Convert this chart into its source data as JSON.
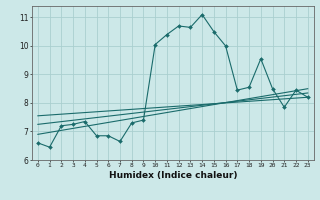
{
  "xlabel": "Humidex (Indice chaleur)",
  "ylabel": "",
  "bg_color": "#cce8e8",
  "grid_color": "#aacfcf",
  "line_color": "#1a6b6b",
  "xlim": [
    -0.5,
    23.5
  ],
  "ylim": [
    6.0,
    11.4
  ],
  "yticks": [
    6,
    7,
    8,
    9,
    10,
    11
  ],
  "xticks": [
    0,
    1,
    2,
    3,
    4,
    5,
    6,
    7,
    8,
    9,
    10,
    11,
    12,
    13,
    14,
    15,
    16,
    17,
    18,
    19,
    20,
    21,
    22,
    23
  ],
  "series1_x": [
    0,
    1,
    2,
    3,
    4,
    5,
    6,
    7,
    8,
    9,
    10,
    11,
    12,
    13,
    14,
    15,
    16,
    17,
    18,
    19,
    20,
    21,
    22,
    23
  ],
  "series1_y": [
    6.6,
    6.45,
    7.2,
    7.25,
    7.35,
    6.85,
    6.85,
    6.65,
    7.3,
    7.4,
    10.05,
    10.4,
    10.7,
    10.65,
    11.1,
    10.5,
    10.0,
    8.45,
    8.55,
    9.55,
    8.5,
    7.85,
    8.45,
    8.2
  ],
  "series2_x": [
    0,
    23
  ],
  "series2_y": [
    6.9,
    8.5
  ],
  "series3_x": [
    0,
    23
  ],
  "series3_y": [
    7.25,
    8.35
  ],
  "series4_x": [
    0,
    23
  ],
  "series4_y": [
    7.55,
    8.2
  ]
}
